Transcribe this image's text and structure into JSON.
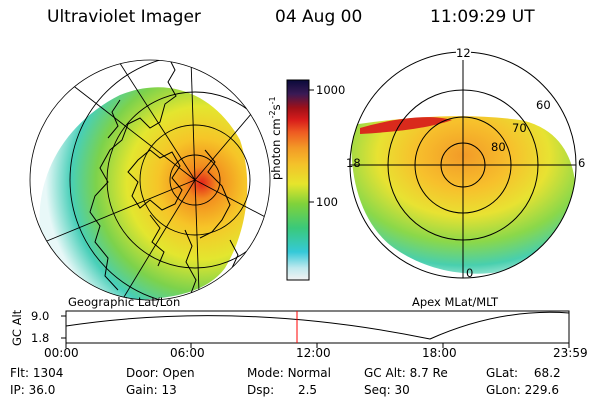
{
  "header": {
    "title": "Ultraviolet Imager",
    "date": "04 Aug 00",
    "time": "11:09:29 UT"
  },
  "geo_panel": {
    "label": "Geographic Lat/Lon"
  },
  "mag_panel": {
    "label": "Apex MLat/MLT",
    "mlt_labels": {
      "top": "12",
      "right": "6",
      "left": "18",
      "bottom": "0"
    },
    "lat_labels": [
      "60",
      "70",
      "80"
    ]
  },
  "colorbar": {
    "ticks": [
      "1000",
      "100"
    ],
    "unit_label": "photon cm",
    "unit_exp1": "-2",
    "unit_s": "s",
    "unit_exp2": "-1"
  },
  "orbit": {
    "ylabel": "GC Alt",
    "y_ticks": [
      "9.0",
      "1.8"
    ],
    "x_ticks": [
      "00:00",
      "06:00",
      "12:00",
      "18:00",
      "23:59"
    ]
  },
  "info": {
    "flt_label": "Flt:",
    "flt_value": "1304",
    "ip_label": "IP:",
    "ip_value": "36.0",
    "door_label": "Door:",
    "door_value": "Open",
    "gain_label": "Gain:",
    "gain_value": "13",
    "mode_label": "Mode:",
    "mode_value": "Normal",
    "dsp_label": "Dsp:",
    "dsp_value": "2.5",
    "gcalt_label": "GC Alt:",
    "gcalt_value": "8.7 Re",
    "seq_label": "Seq:",
    "seq_value": "30",
    "glat_label": "GLat:",
    "glat_value": "68.2",
    "glon_label": "GLon:",
    "glon_value": "229.6"
  },
  "colors": {
    "background": "#ffffff",
    "marker": "#ff0000",
    "grid": "#000000"
  }
}
